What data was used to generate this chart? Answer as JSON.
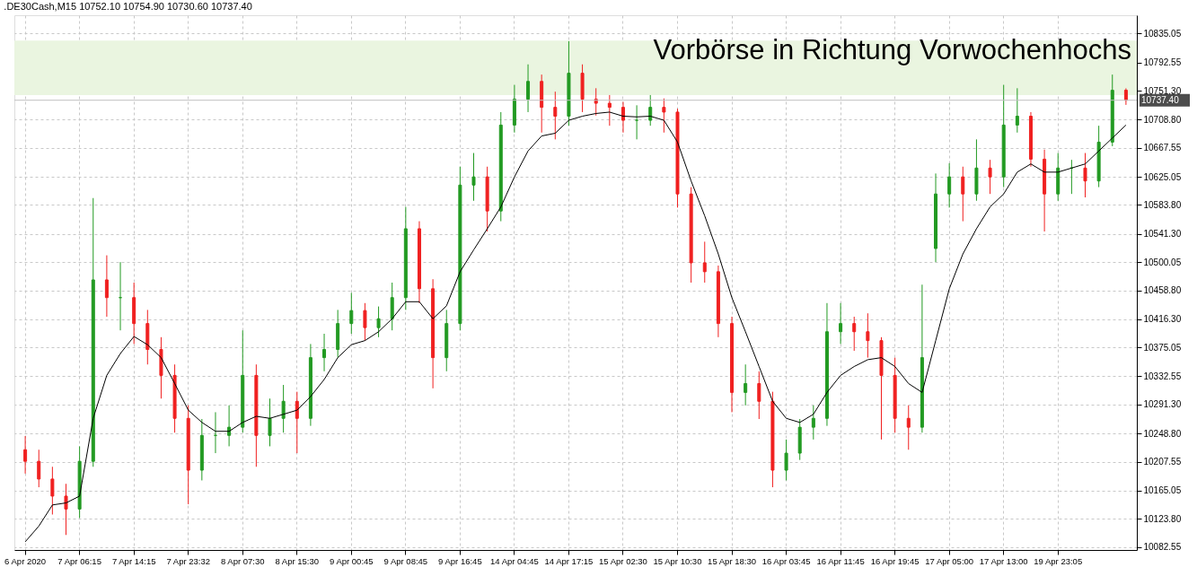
{
  "chart_data": {
    "type": "candlestick",
    "title": ".DE30Cash,M15  10752.10 10754.90 10730.60 10737.40",
    "annotations": [
      "Vorbörse in Richtung Vorwochenhochs"
    ],
    "categories": [
      "6 Apr 2020",
      null,
      null,
      null,
      "7 Apr 06:15",
      null,
      null,
      null,
      "7 Apr 14:15",
      null,
      null,
      null,
      "7 Apr 23:32",
      null,
      null,
      null,
      "8 Apr 07:30",
      null,
      null,
      null,
      "8 Apr 15:30",
      null,
      null,
      null,
      "9 Apr 00:45",
      null,
      null,
      null,
      "9 Apr 08:45",
      null,
      null,
      null,
      "9 Apr 16:45",
      null,
      null,
      null,
      "14 Apr 04:45",
      null,
      null,
      null,
      "14 Apr 17:15",
      null,
      null,
      null,
      "15 Apr 02:30",
      null,
      null,
      null,
      "15 Apr 10:30",
      null,
      null,
      null,
      "15 Apr 18:30",
      null,
      null,
      null,
      "16 Apr 03:45",
      null,
      null,
      null,
      "16 Apr 11:45",
      null,
      null,
      null,
      "16 Apr 19:45",
      null,
      null,
      null,
      "17 Apr 05:00",
      null,
      null,
      null,
      "17 Apr 13:00",
      null,
      null,
      null,
      "19 Apr 23:05",
      null,
      null,
      null,
      null,
      null
    ],
    "ohlc": [
      [
        10225,
        10245,
        10190,
        10208
      ],
      [
        10208,
        10225,
        10170,
        10182
      ],
      [
        10182,
        10200,
        10130,
        10157
      ],
      [
        10157,
        10175,
        10100,
        10138
      ],
      [
        10138,
        10230,
        10125,
        10208
      ],
      [
        10208,
        10594,
        10200,
        10474
      ],
      [
        10474,
        10510,
        10420,
        10448
      ],
      [
        10448,
        10500,
        10400,
        10448
      ],
      [
        10448,
        10470,
        10380,
        10410
      ],
      [
        10410,
        10430,
        10350,
        10372
      ],
      [
        10372,
        10390,
        10300,
        10334
      ],
      [
        10334,
        10350,
        10250,
        10271
      ],
      [
        10271,
        10290,
        10145,
        10195
      ],
      [
        10195,
        10270,
        10180,
        10246
      ],
      [
        10246,
        10280,
        10220,
        10246
      ],
      [
        10246,
        10290,
        10230,
        10258
      ],
      [
        10258,
        10400,
        10250,
        10334
      ],
      [
        10334,
        10350,
        10200,
        10246
      ],
      [
        10246,
        10300,
        10230,
        10271
      ],
      [
        10271,
        10320,
        10250,
        10296
      ],
      [
        10296,
        10310,
        10220,
        10271
      ],
      [
        10271,
        10380,
        10260,
        10360
      ],
      [
        10360,
        10395,
        10340,
        10372
      ],
      [
        10372,
        10430,
        10360,
        10410
      ],
      [
        10410,
        10455,
        10395,
        10429
      ],
      [
        10429,
        10440,
        10385,
        10404
      ],
      [
        10404,
        10435,
        10390,
        10417
      ],
      [
        10417,
        10470,
        10400,
        10448
      ],
      [
        10448,
        10581,
        10430,
        10549
      ],
      [
        10549,
        10560,
        10440,
        10461
      ],
      [
        10461,
        10475,
        10315,
        10360
      ],
      [
        10360,
        10430,
        10340,
        10410
      ],
      [
        10410,
        10640,
        10400,
        10613
      ],
      [
        10613,
        10660,
        10590,
        10625
      ],
      [
        10625,
        10640,
        10545,
        10575
      ],
      [
        10575,
        10720,
        10560,
        10701
      ],
      [
        10701,
        10760,
        10690,
        10739
      ],
      [
        10739,
        10790,
        10720,
        10765
      ],
      [
        10765,
        10775,
        10690,
        10727
      ],
      [
        10727,
        10750,
        10680,
        10714
      ],
      [
        10714,
        10824,
        10700,
        10777
      ],
      [
        10777,
        10790,
        10720,
        10739
      ],
      [
        10739,
        10755,
        10715,
        10733
      ],
      [
        10733,
        10745,
        10700,
        10727
      ],
      [
        10727,
        10735,
        10690,
        10708
      ],
      [
        10708,
        10730,
        10680,
        10708
      ],
      [
        10708,
        10745,
        10700,
        10727
      ],
      [
        10727,
        10740,
        10690,
        10720
      ],
      [
        10720,
        10725,
        10580,
        10600
      ],
      [
        10600,
        10610,
        10470,
        10499
      ],
      [
        10499,
        10530,
        10470,
        10486
      ],
      [
        10486,
        10495,
        10390,
        10410
      ],
      [
        10410,
        10420,
        10280,
        10309
      ],
      [
        10309,
        10350,
        10290,
        10322
      ],
      [
        10322,
        10340,
        10270,
        10296
      ],
      [
        10296,
        10310,
        10170,
        10195
      ],
      [
        10195,
        10240,
        10180,
        10220
      ],
      [
        10220,
        10270,
        10210,
        10258
      ],
      [
        10258,
        10290,
        10240,
        10271
      ],
      [
        10271,
        10440,
        10260,
        10398
      ],
      [
        10398,
        10440,
        10380,
        10410
      ],
      [
        10410,
        10420,
        10370,
        10398
      ],
      [
        10398,
        10425,
        10360,
        10385
      ],
      [
        10385,
        10390,
        10240,
        10334
      ],
      [
        10334,
        10360,
        10250,
        10271
      ],
      [
        10271,
        10290,
        10225,
        10258
      ],
      [
        10258,
        10467,
        10250,
        10360
      ],
      [
        10520,
        10630,
        10500,
        10600
      ],
      [
        10600,
        10645,
        10580,
        10625
      ],
      [
        10625,
        10640,
        10560,
        10600
      ],
      [
        10600,
        10680,
        10590,
        10638
      ],
      [
        10638,
        10650,
        10600,
        10625
      ],
      [
        10625,
        10760,
        10610,
        10701
      ],
      [
        10701,
        10755,
        10690,
        10714
      ],
      [
        10714,
        10720,
        10640,
        10651
      ],
      [
        10651,
        10665,
        10545,
        10600
      ],
      [
        10600,
        10660,
        10590,
        10638
      ],
      [
        10638,
        10650,
        10600,
        10638
      ],
      [
        10638,
        10660,
        10595,
        10619
      ],
      [
        10619,
        10700,
        10610,
        10676
      ],
      [
        10676,
        10775,
        10670,
        10752
      ],
      [
        10752.1,
        10754.9,
        10730.6,
        10737.4
      ]
    ],
    "colors": [
      "#f02020",
      "#f02020",
      "#f02020",
      "#f02020",
      "#229a22",
      "#229a22",
      "#f02020",
      "#229a22",
      "#f02020",
      "#f02020",
      "#f02020",
      "#f02020",
      "#f02020",
      "#229a22",
      "#229a22",
      "#229a22",
      "#229a22",
      "#f02020",
      "#229a22",
      "#229a22",
      "#f02020",
      "#229a22",
      "#229a22",
      "#229a22",
      "#229a22",
      "#f02020",
      "#229a22",
      "#229a22",
      "#229a22",
      "#f02020",
      "#f02020",
      "#229a22",
      "#229a22",
      "#229a22",
      "#f02020",
      "#229a22",
      "#229a22",
      "#229a22",
      "#f02020",
      "#f02020",
      "#229a22",
      "#f02020",
      "#f02020",
      "#f02020",
      "#f02020",
      "#229a22",
      "#229a22",
      "#f02020",
      "#f02020",
      "#f02020",
      "#f02020",
      "#f02020",
      "#f02020",
      "#229a22",
      "#f02020",
      "#f02020",
      "#229a22",
      "#229a22",
      "#229a22",
      "#229a22",
      "#229a22",
      "#f02020",
      "#f02020",
      "#f02020",
      "#f02020",
      "#f02020",
      "#229a22",
      "#229a22",
      "#229a22",
      "#f02020",
      "#229a22",
      "#f02020",
      "#229a22",
      "#229a22",
      "#f02020",
      "#f02020",
      "#229a22",
      "#229a22",
      "#f02020",
      "#229a22",
      "#229a22",
      "#f02020"
    ],
    "series": [
      {
        "type": "line",
        "color": "#000000",
        "values": [
          10090,
          10113,
          10144,
          10147,
          10157,
          10271,
          10334,
          10366,
          10391,
          10379,
          10360,
          10322,
          10283,
          10265,
          10252,
          10252,
          10265,
          10274,
          10271,
          10277,
          10283,
          10303,
          10328,
          10360,
          10379,
          10385,
          10398,
          10417,
          10442,
          10442,
          10417,
          10436,
          10486,
          10518,
          10549,
          10581,
          10625,
          10663,
          10685,
          10689,
          10708,
          10714,
          10718,
          10720,
          10714,
          10713,
          10714,
          10708,
          10676,
          10619,
          10568,
          10512,
          10448,
          10398,
          10347,
          10296,
          10271,
          10265,
          10277,
          10309,
          10334,
          10347,
          10357,
          10360,
          10347,
          10322,
          10309,
          10385,
          10461,
          10512,
          10549,
          10581,
          10600,
          10632,
          10644,
          10632,
          10632,
          10638,
          10644,
          10663,
          10682,
          10701
        ]
      }
    ],
    "ylim": [
      10078,
      10862
    ],
    "yticks": [
      {
        "value": 10082.55,
        "label": "10082.55"
      },
      {
        "value": 10123.8,
        "label": "10123.80"
      },
      {
        "value": 10165.05,
        "label": "10165.05"
      },
      {
        "value": 10207.55,
        "label": "10207.55"
      },
      {
        "value": 10248.8,
        "label": "10248.80"
      },
      {
        "value": 10291.3,
        "label": "10291.30"
      },
      {
        "value": 10332.55,
        "label": "10332.55"
      },
      {
        "value": 10375.05,
        "label": "10375.05"
      },
      {
        "value": 10416.3,
        "label": "10416.30"
      },
      {
        "value": 10458.8,
        "label": "10458.80"
      },
      {
        "value": 10500.05,
        "label": "10500.05"
      },
      {
        "value": 10541.3,
        "label": "10541.30"
      },
      {
        "value": 10583.8,
        "label": "10583.80"
      },
      {
        "value": 10625.05,
        "label": "10625.05"
      },
      {
        "value": 10667.55,
        "label": "10667.55"
      },
      {
        "value": 10708.8,
        "label": "10708.80"
      },
      {
        "value": 10751.3,
        "label": "10751.30"
      },
      {
        "value": 10792.55,
        "label": "10792.55"
      },
      {
        "value": 10835.05,
        "label": "10835.05"
      }
    ],
    "ref_lines": [
      {
        "axis": "y",
        "value": 10737.4,
        "label": "10737.40",
        "color": "#c0c0c0"
      }
    ],
    "bands": [
      {
        "axis": "y",
        "from": 10745,
        "to": 10825,
        "color": "#eaf5e0"
      }
    ],
    "grid": true,
    "marker": "none"
  }
}
